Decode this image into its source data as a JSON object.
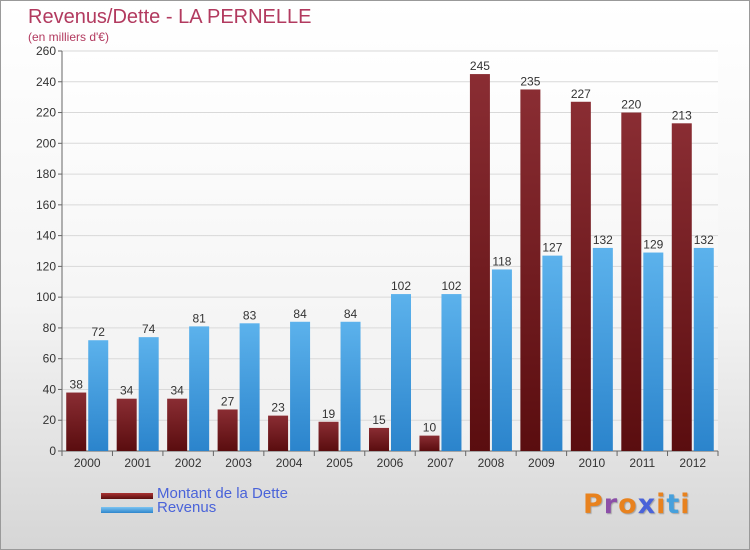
{
  "title": "Revenus/Dette - LA PERNELLE",
  "subtitle": "(en milliers d'€)",
  "colors": {
    "title": "#b23a5f",
    "dette": "#7b2329",
    "revenus": "#4aa3e3",
    "legend_text": "#4a63d9",
    "grid": "#d9d9d9",
    "axis": "#666666"
  },
  "legend": [
    {
      "label": "Montant de la Dette",
      "color": "#6a1515"
    },
    {
      "label": "Revenus",
      "color": "#4aa3e3"
    }
  ],
  "logo": {
    "text": "Proxiti",
    "letter_colors": [
      "#e8821e",
      "#8c4fa8",
      "#e8821e",
      "#4a63d9",
      "#e8821e",
      "#46a0dc",
      "#e8821e"
    ]
  },
  "chart_data": {
    "type": "bar",
    "categories": [
      "2000",
      "2001",
      "2002",
      "2003",
      "2004",
      "2005",
      "2006",
      "2007",
      "2008",
      "2009",
      "2010",
      "2011",
      "2012"
    ],
    "series": [
      {
        "name": "Montant de la Dette",
        "values": [
          38,
          34,
          34,
          27,
          23,
          19,
          15,
          10,
          245,
          235,
          227,
          220,
          213
        ]
      },
      {
        "name": "Revenus",
        "values": [
          72,
          74,
          81,
          83,
          84,
          84,
          102,
          102,
          118,
          127,
          132,
          129,
          132
        ]
      }
    ],
    "y_ticks": [
      0,
      20,
      40,
      60,
      80,
      100,
      120,
      140,
      160,
      180,
      200,
      220,
      240,
      260
    ],
    "ylim": [
      0,
      260
    ],
    "grid": true,
    "legend_position": "bottom-left"
  }
}
